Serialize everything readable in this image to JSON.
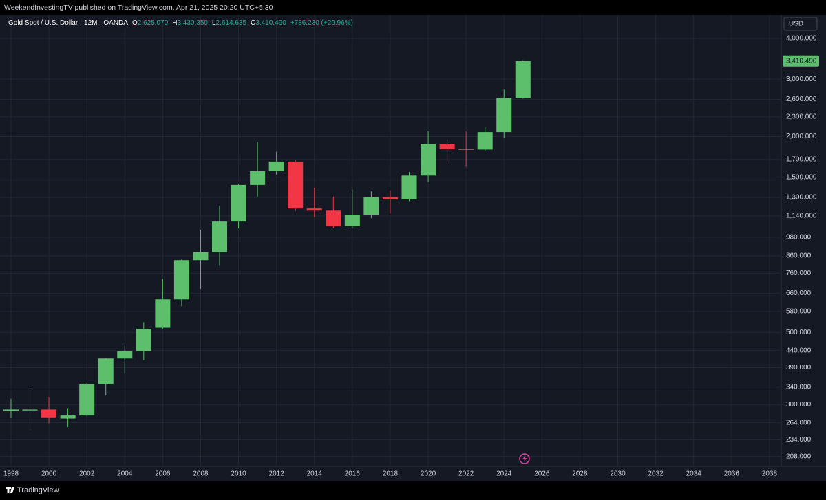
{
  "header": {
    "published": "WeekendInvestingTV published on TradingView.com, Apr 21, 2025 20:20 UTC+5:30"
  },
  "footer": {
    "brand": "TradingView"
  },
  "chart_data": {
    "type": "candlestick",
    "legend": {
      "symbol": "Gold Spot / U.S. Dollar · 12M · OANDA",
      "o_key": "O",
      "o": "2,625.070",
      "h_key": "H",
      "h": "3,430.350",
      "l_key": "L",
      "l": "2,614.635",
      "c_key": "C",
      "c": "3,410.490",
      "change": "+786.230 (+29.96%)"
    },
    "currency": "USD",
    "last_price_label": "3,410.490",
    "x": [
      1998,
      1999,
      2000,
      2001,
      2002,
      2003,
      2004,
      2005,
      2006,
      2007,
      2008,
      2009,
      2010,
      2011,
      2012,
      2013,
      2014,
      2015,
      2016,
      2017,
      2018,
      2019,
      2020,
      2021,
      2022,
      2023,
      2024,
      2025
    ],
    "open": [
      287,
      288,
      290,
      272,
      278,
      347,
      416,
      438,
      517,
      632,
      834,
      882,
      1096,
      1420,
      1565,
      1675,
      1202,
      1184,
      1061,
      1151,
      1303,
      1282,
      1517,
      1898,
      1829,
      1824,
      2063,
      2625.07
    ],
    "high": [
      313,
      338,
      317,
      293,
      349,
      417,
      456,
      538,
      730,
      842,
      1033,
      1227,
      1431,
      1921,
      1796,
      1696,
      1392,
      1308,
      1375,
      1358,
      1366,
      1557,
      2075,
      1959,
      2070,
      2135,
      2790,
      3430.35
    ],
    "low": [
      273,
      252,
      263,
      256,
      277,
      320,
      373,
      411,
      513,
      602,
      681,
      802,
      1044,
      1308,
      1527,
      1180,
      1131,
      1046,
      1046,
      1123,
      1160,
      1266,
      1451,
      1677,
      1615,
      1805,
      1984,
      2614.635
    ],
    "close": [
      290,
      290,
      273,
      278,
      347,
      416,
      438,
      513,
      632,
      834,
      882,
      1096,
      1420,
      1565,
      1675,
      1202,
      1184,
      1061,
      1151,
      1303,
      1282,
      1517,
      1898,
      1829,
      1824,
      2063,
      2625,
      3410.49
    ],
    "up_color": "#5dbe6c",
    "down_color": "#f23645",
    "log_scale": true,
    "grid": true,
    "xlim": [
      1997.42,
      2038.62
    ],
    "xticks": [
      1998,
      2000,
      2002,
      2004,
      2006,
      2008,
      2010,
      2012,
      2014,
      2016,
      2018,
      2020,
      2022,
      2024,
      2026,
      2028,
      2030,
      2032,
      2034,
      2036,
      2038
    ],
    "ylim": [
      194,
      4720
    ],
    "yticks": [
      {
        "value": 208,
        "label": "208.000"
      },
      {
        "value": 234,
        "label": "234.000"
      },
      {
        "value": 264,
        "label": "264.000"
      },
      {
        "value": 300,
        "label": "300.000"
      },
      {
        "value": 340,
        "label": "340.000"
      },
      {
        "value": 390,
        "label": "390.000"
      },
      {
        "value": 440,
        "label": "440.000"
      },
      {
        "value": 500,
        "label": "500.000"
      },
      {
        "value": 580,
        "label": "580.000"
      },
      {
        "value": 660,
        "label": "660.000"
      },
      {
        "value": 760,
        "label": "760.000"
      },
      {
        "value": 860,
        "label": "860.000"
      },
      {
        "value": 980,
        "label": "980.000"
      },
      {
        "value": 1140,
        "label": "1,140.000"
      },
      {
        "value": 1300,
        "label": "1,300.000"
      },
      {
        "value": 1500,
        "label": "1,500.000"
      },
      {
        "value": 1700,
        "label": "1,700.000"
      },
      {
        "value": 2000,
        "label": "2,000.000"
      },
      {
        "value": 2300,
        "label": "2,300.000"
      },
      {
        "value": 2600,
        "label": "2,600.000"
      },
      {
        "value": 3000,
        "label": "3,000.000"
      },
      {
        "value": 4000,
        "label": "4,000.000"
      }
    ]
  }
}
